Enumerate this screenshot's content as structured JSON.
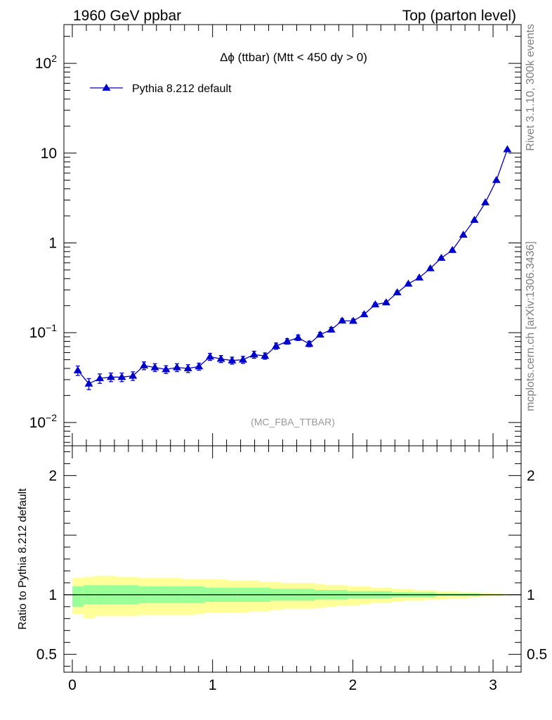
{
  "header": {
    "left": "1960 GeV ppbar",
    "right": "Top (parton level)"
  },
  "side": {
    "top": "Rivet 3.1.10,  300k events",
    "bottom": "mcplots.cern.ch [arXiv:1306.3436]"
  },
  "chart_data": [
    {
      "type": "line",
      "title": "Δϕ (ttbar) (Mtt < 450 dy > 0)",
      "annotation": "(MC_FBA_TTBAR)",
      "legend": "top-left",
      "yscale": "log",
      "xlim": [
        -0.06,
        3.2
      ],
      "ylim": [
        0.0055,
        270
      ],
      "xlabel": "",
      "ylabel": "",
      "series": [
        {
          "name": "Pythia 8.212 default",
          "color": "#0000cc",
          "marker": "triangle-up",
          "x": [
            0.039,
            0.118,
            0.196,
            0.275,
            0.353,
            0.432,
            0.511,
            0.589,
            0.668,
            0.746,
            0.825,
            0.903,
            0.982,
            1.06,
            1.139,
            1.217,
            1.296,
            1.374,
            1.453,
            1.532,
            1.61,
            1.689,
            1.767,
            1.846,
            1.924,
            2.003,
            2.081,
            2.16,
            2.238,
            2.317,
            2.396,
            2.474,
            2.553,
            2.631,
            2.71,
            2.788,
            2.867,
            2.945,
            3.024,
            3.102
          ],
          "y": [
            0.038,
            0.027,
            0.031,
            0.032,
            0.032,
            0.033,
            0.043,
            0.041,
            0.039,
            0.041,
            0.04,
            0.042,
            0.054,
            0.051,
            0.049,
            0.05,
            0.057,
            0.055,
            0.071,
            0.08,
            0.088,
            0.075,
            0.095,
            0.108,
            0.136,
            0.135,
            0.16,
            0.206,
            0.217,
            0.28,
            0.35,
            0.41,
            0.52,
            0.68,
            0.83,
            1.23,
            1.8,
            2.82,
            5.0,
            11.0
          ],
          "yerr_rel": [
            0.12,
            0.14,
            0.12,
            0.11,
            0.11,
            0.11,
            0.1,
            0.1,
            0.1,
            0.1,
            0.1,
            0.09,
            0.09,
            0.09,
            0.09,
            0.09,
            0.09,
            0.08,
            0.08,
            0.07,
            0.07,
            0.07,
            0.06,
            0.06,
            0.05,
            0.05,
            0.05,
            0.04,
            0.04,
            0.04,
            0.03,
            0.03,
            0.03,
            0.02,
            0.02,
            0.02,
            0.015,
            0.01,
            0.01,
            0.005
          ]
        }
      ],
      "yticks": [
        {
          "value": 0.01,
          "base": "10",
          "exp": "−2"
        },
        {
          "value": 0.1,
          "base": "10",
          "exp": "−1"
        },
        {
          "value": 1,
          "base": "1",
          "exp": ""
        },
        {
          "value": 10,
          "base": "10",
          "exp": ""
        },
        {
          "value": 100,
          "base": "10",
          "exp": "2"
        }
      ]
    },
    {
      "type": "area",
      "ylabel": "Ratio to Pythia 8.212 default",
      "xlim": [
        -0.06,
        3.2
      ],
      "ylim": [
        0.35,
        2.25
      ],
      "reference": 1,
      "band_colors": {
        "outer": "#ffff99",
        "inner": "#99ff99"
      },
      "bands": {
        "x_edges": [
          0.0,
          0.079,
          0.157,
          0.236,
          0.314,
          0.393,
          0.471,
          0.55,
          0.628,
          0.707,
          0.785,
          0.864,
          0.942,
          1.021,
          1.1,
          1.178,
          1.257,
          1.335,
          1.414,
          1.492,
          1.571,
          1.649,
          1.728,
          1.806,
          1.885,
          1.963,
          2.042,
          2.12,
          2.199,
          2.277,
          2.356,
          2.435,
          2.513,
          2.592,
          2.67,
          2.749,
          2.827,
          2.906,
          2.985,
          3.063,
          3.142
        ],
        "outer_lo": [
          0.84,
          0.8,
          0.82,
          0.82,
          0.82,
          0.82,
          0.83,
          0.83,
          0.83,
          0.83,
          0.83,
          0.84,
          0.85,
          0.85,
          0.85,
          0.85,
          0.86,
          0.86,
          0.87,
          0.88,
          0.88,
          0.88,
          0.89,
          0.9,
          0.91,
          0.91,
          0.92,
          0.93,
          0.93,
          0.94,
          0.95,
          0.95,
          0.96,
          0.96,
          0.97,
          0.97,
          0.98,
          0.985,
          0.99,
          0.995
        ],
        "outer_hi": [
          1.14,
          1.15,
          1.16,
          1.16,
          1.15,
          1.15,
          1.14,
          1.14,
          1.14,
          1.14,
          1.13,
          1.13,
          1.13,
          1.13,
          1.12,
          1.12,
          1.12,
          1.11,
          1.11,
          1.1,
          1.1,
          1.1,
          1.09,
          1.08,
          1.08,
          1.07,
          1.07,
          1.06,
          1.06,
          1.05,
          1.05,
          1.04,
          1.04,
          1.03,
          1.03,
          1.02,
          1.02,
          1.015,
          1.01,
          1.005
        ],
        "inner_lo": [
          0.9,
          0.92,
          0.92,
          0.92,
          0.92,
          0.92,
          0.93,
          0.93,
          0.93,
          0.93,
          0.93,
          0.93,
          0.94,
          0.94,
          0.94,
          0.94,
          0.94,
          0.94,
          0.95,
          0.95,
          0.95,
          0.95,
          0.96,
          0.96,
          0.96,
          0.97,
          0.97,
          0.97,
          0.97,
          0.98,
          0.98,
          0.98,
          0.98,
          0.99,
          0.99,
          0.99,
          0.99,
          0.995,
          0.995,
          0.998
        ],
        "inner_hi": [
          1.07,
          1.08,
          1.08,
          1.08,
          1.08,
          1.08,
          1.07,
          1.07,
          1.07,
          1.07,
          1.07,
          1.07,
          1.06,
          1.06,
          1.06,
          1.06,
          1.06,
          1.06,
          1.05,
          1.05,
          1.05,
          1.05,
          1.04,
          1.04,
          1.04,
          1.03,
          1.03,
          1.03,
          1.03,
          1.02,
          1.02,
          1.02,
          1.02,
          1.01,
          1.01,
          1.01,
          1.01,
          1.005,
          1.005,
          1.002
        ]
      },
      "yticks": [
        {
          "value": 0.5,
          "label": "0.5"
        },
        {
          "value": 1,
          "label": "1"
        },
        {
          "value": 2,
          "label": "2"
        }
      ],
      "xticks": [
        {
          "value": 0,
          "label": "0"
        },
        {
          "value": 1,
          "label": "1"
        },
        {
          "value": 2,
          "label": "2"
        },
        {
          "value": 3,
          "label": "3"
        }
      ]
    }
  ]
}
